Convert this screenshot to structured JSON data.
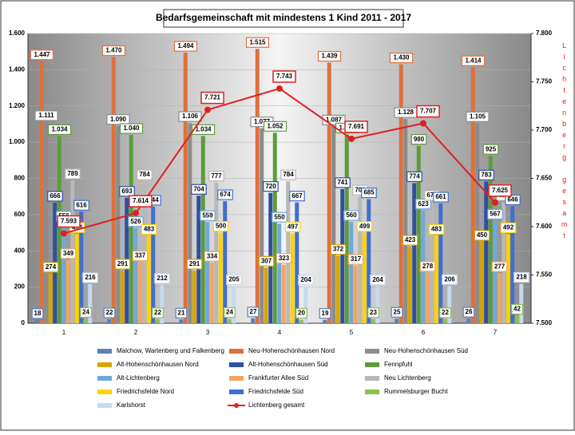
{
  "chart_data": {
    "type": "bar",
    "title": "Bedarfsgemeinschaft mit mindestens 1 Kind 2011 - 2017",
    "categories": [
      "1",
      "2",
      "3",
      "4",
      "5",
      "6",
      "7"
    ],
    "ylim": [
      0,
      1600
    ],
    "yticks": [
      {
        "value": 0,
        "label": "0"
      },
      {
        "value": 200,
        "label": "200"
      },
      {
        "value": 400,
        "label": "400"
      },
      {
        "value": 600,
        "label": "600"
      },
      {
        "value": 800,
        "label": "800"
      },
      {
        "value": 1000,
        "label": "1.000"
      },
      {
        "value": 1200,
        "label": "1.200"
      },
      {
        "value": 1400,
        "label": "1.400"
      },
      {
        "value": 1600,
        "label": "1.600"
      }
    ],
    "y2lim": [
      7500,
      7800
    ],
    "y2ticks": [
      {
        "value": 7500,
        "label": "7.500"
      },
      {
        "value": 7550,
        "label": "7.550"
      },
      {
        "value": 7600,
        "label": "7.600"
      },
      {
        "value": 7650,
        "label": "7.650"
      },
      {
        "value": 7700,
        "label": "7.700"
      },
      {
        "value": 7750,
        "label": "7.750"
      },
      {
        "value": 7800,
        "label": "7.800"
      }
    ],
    "y2_label": "Lichtenberg gesamt",
    "grid": true,
    "legend": "bottom",
    "series": [
      {
        "name": "Malchow, Wartenberg und Falkenberg",
        "color": "#5b7fb8",
        "values": [
          18,
          22,
          21,
          27,
          19,
          25,
          26
        ]
      },
      {
        "name": "Neu-Hohenschönhausen Nord",
        "color": "#e0703a",
        "values": [
          1447,
          1470,
          1494,
          1515,
          1439,
          1430,
          1414
        ],
        "value_labels": [
          "1.447",
          "1.470",
          "1.494",
          "1.515",
          "1.439",
          "1.430",
          "1.414"
        ]
      },
      {
        "name": "Neu-Hohenschönhausen Süd",
        "color": "#8c8c8c",
        "values": [
          1111,
          1090,
          1106,
          1077,
          1087,
          1128,
          1105
        ],
        "value_labels": [
          "1.111",
          "1.090",
          "1.106",
          "1.077",
          "1.087",
          "1.128",
          "1.105"
        ]
      },
      {
        "name": "Alt-Hohenschönhausen Nord",
        "color": "#d9a400",
        "values": [
          274,
          291,
          291,
          307,
          372,
          423,
          450
        ]
      },
      {
        "name": "Alt-Hohenschönhausen Süd",
        "color": "#2f4f9f",
        "values": [
          666,
          693,
          704,
          720,
          741,
          774,
          783
        ]
      },
      {
        "name": "Fennpfuhl",
        "color": "#5d9b3a",
        "values": [
          1034,
          1040,
          1034,
          1052,
          1043,
          980,
          925
        ],
        "value_labels": [
          "1.034",
          "1.040",
          "1.034",
          "1.052",
          "1.043",
          "980",
          "925"
        ]
      },
      {
        "name": "Alt-Lichtenberg",
        "color": "#6fa8dc",
        "values": [
          556,
          526,
          559,
          550,
          560,
          623,
          567
        ]
      },
      {
        "name": "Frankfurter Allee Süd",
        "color": "#f4a460",
        "values": [
          349,
          337,
          334,
          323,
          317,
          278,
          277
        ]
      },
      {
        "name": "Neu Lichtenberg",
        "color": "#b8b8b8",
        "values": [
          789,
          784,
          777,
          784,
          700,
          670,
          670
        ]
      },
      {
        "name": "Friedrichsfelde Nord",
        "color": "#ffd200",
        "values": [
          493,
          483,
          500,
          497,
          499,
          483,
          492
        ]
      },
      {
        "name": "Friedrichsfelde Süd",
        "color": "#3f6fd0",
        "values": [
          616,
          644,
          674,
          667,
          685,
          661,
          646
        ]
      },
      {
        "name": "Rummelsburger Bucht",
        "color": "#8fc050",
        "values": [
          24,
          22,
          24,
          20,
          23,
          22,
          42
        ]
      },
      {
        "name": "Karlshorst",
        "color": "#c6d9f1",
        "values": [
          216,
          212,
          205,
          204,
          204,
          206,
          218
        ]
      },
      {
        "name": "Lichtenberg gesamt",
        "color": "#e02020",
        "type": "line",
        "axis": "y2",
        "values": [
          7593,
          7614,
          7721,
          7743,
          7691,
          7707,
          7625
        ],
        "value_labels": [
          "7.593",
          "7.614",
          "7.721",
          "7.743",
          "7.691",
          "7.707",
          "7.625"
        ]
      }
    ]
  }
}
